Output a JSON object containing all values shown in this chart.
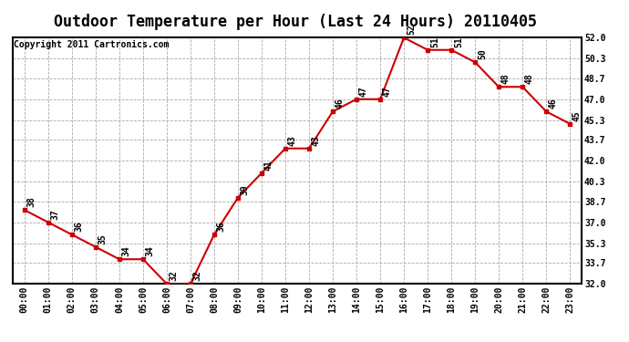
{
  "title": "Outdoor Temperature per Hour (Last 24 Hours) 20110405",
  "copyright": "Copyright 2011 Cartronics.com",
  "hours": [
    "00:00",
    "01:00",
    "02:00",
    "03:00",
    "04:00",
    "05:00",
    "06:00",
    "07:00",
    "08:00",
    "09:00",
    "10:00",
    "11:00",
    "12:00",
    "13:00",
    "14:00",
    "15:00",
    "16:00",
    "17:00",
    "18:00",
    "19:00",
    "20:00",
    "21:00",
    "22:00",
    "23:00"
  ],
  "temps": [
    38,
    37,
    36,
    35,
    34,
    34,
    32,
    32,
    36,
    39,
    41,
    43,
    43,
    46,
    47,
    47,
    52,
    51,
    51,
    50,
    48,
    48,
    46,
    45
  ],
  "ylim_min": 32.0,
  "ylim_max": 52.0,
  "ytick_vals": [
    32.0,
    33.7,
    35.3,
    37.0,
    38.7,
    40.3,
    42.0,
    43.7,
    45.3,
    47.0,
    48.7,
    50.3,
    52.0
  ],
  "ytick_labels": [
    "32.0",
    "33.7",
    "35.3",
    "37.0",
    "38.7",
    "40.3",
    "42.0",
    "43.7",
    "45.3",
    "47.0",
    "48.7",
    "50.3",
    "52.0"
  ],
  "line_color": "#cc0000",
  "marker_color": "#cc0000",
  "bg_color": "#ffffff",
  "grid_color": "#aaaaaa",
  "title_fontsize": 12,
  "tick_fontsize": 7,
  "copyright_fontsize": 7,
  "annot_fontsize": 7
}
